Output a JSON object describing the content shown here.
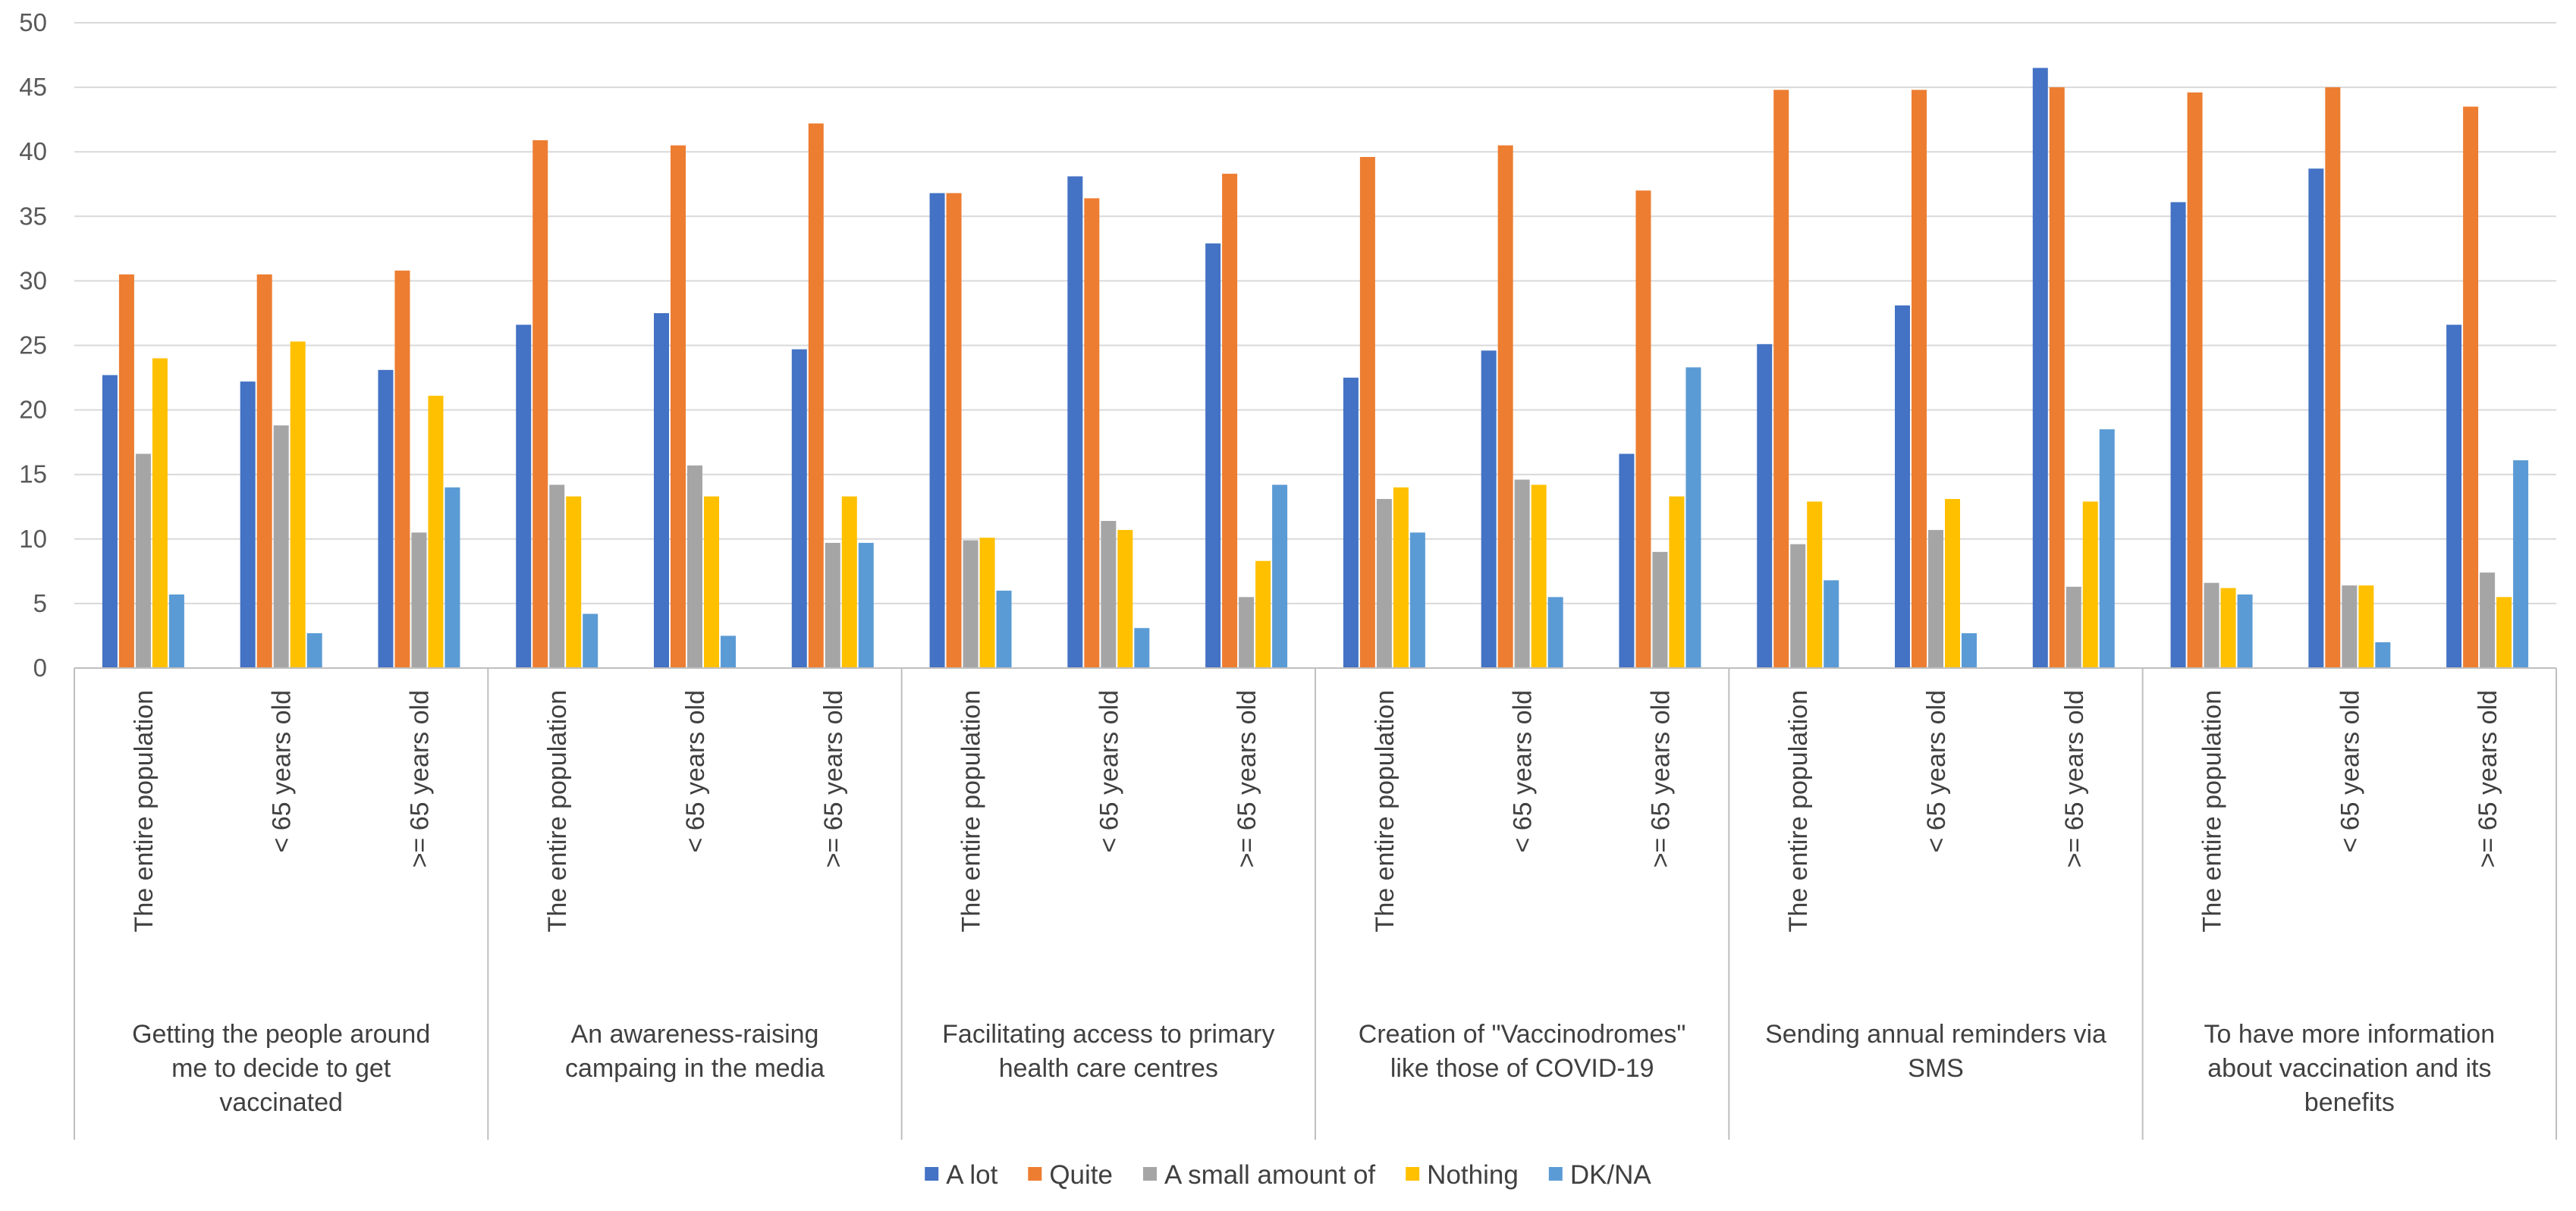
{
  "chart_data": {
    "type": "bar",
    "title": "",
    "xlabel": "",
    "ylabel": "",
    "ylim": [
      0,
      50
    ],
    "yticks": [
      0,
      5,
      10,
      15,
      20,
      25,
      30,
      35,
      40,
      45,
      50
    ],
    "grid": true,
    "legend_position": "bottom",
    "subcategories": [
      "The entire population",
      "< 65 years old",
      ">= 65 years old"
    ],
    "groups": [
      {
        "label_lines": [
          "Getting the people around",
          "me to decide to get",
          "vaccinated"
        ],
        "values": [
          [
            22.7,
            30.5,
            16.6,
            24.0,
            5.7
          ],
          [
            22.2,
            30.5,
            18.8,
            25.3,
            2.7
          ],
          [
            23.1,
            30.8,
            10.5,
            21.1,
            14.0
          ]
        ]
      },
      {
        "label_lines": [
          "An awareness-raising",
          "campaing in the media"
        ],
        "values": [
          [
            26.6,
            40.9,
            14.2,
            13.3,
            4.2
          ],
          [
            27.5,
            40.5,
            15.7,
            13.3,
            2.5
          ],
          [
            24.7,
            42.2,
            9.7,
            13.3,
            9.7
          ]
        ]
      },
      {
        "label_lines": [
          "Facilitating access to primary",
          "health care centres"
        ],
        "values": [
          [
            36.8,
            36.8,
            9.9,
            10.1,
            6.0
          ],
          [
            38.1,
            36.4,
            11.4,
            10.7,
            3.1
          ],
          [
            32.9,
            38.3,
            5.5,
            8.3,
            14.2
          ]
        ]
      },
      {
        "label_lines": [
          "Creation of \"Vaccinodromes\"",
          "like those of COVID-19"
        ],
        "values": [
          [
            22.5,
            39.6,
            13.1,
            14.0,
            10.5
          ],
          [
            24.6,
            40.5,
            14.6,
            14.2,
            5.5
          ],
          [
            16.6,
            37.0,
            9.0,
            13.3,
            23.3
          ]
        ]
      },
      {
        "label_lines": [
          "Sending annual reminders via",
          "SMS"
        ],
        "values": [
          [
            25.1,
            44.8,
            9.6,
            12.9,
            6.8
          ],
          [
            28.1,
            44.8,
            10.7,
            13.1,
            2.7
          ],
          [
            46.5,
            45.0,
            6.3,
            12.9,
            18.5
          ]
        ]
      },
      {
        "label_lines": [
          "To have more information",
          "about vaccination and its",
          "benefits"
        ],
        "values": [
          [
            36.1,
            44.6,
            6.6,
            6.2,
            5.7
          ],
          [
            38.7,
            45.0,
            6.4,
            6.4,
            2.0
          ],
          [
            26.6,
            43.5,
            7.4,
            5.5,
            16.1
          ]
        ]
      }
    ],
    "series": [
      {
        "name": "A lot",
        "color": "#4472C4"
      },
      {
        "name": "Quite",
        "color": "#ED7D31"
      },
      {
        "name": "A small amount of",
        "color": "#A5A5A5"
      },
      {
        "name": "Nothing",
        "color": "#FFC000"
      },
      {
        "name": "DK/NA",
        "color": "#5B9BD5"
      }
    ]
  }
}
